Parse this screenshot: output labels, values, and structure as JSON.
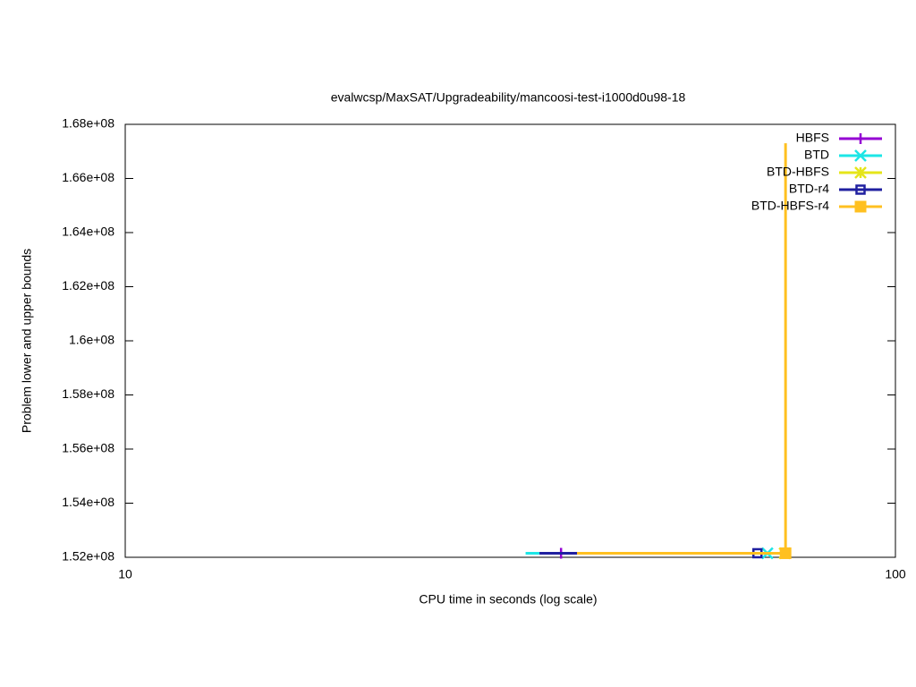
{
  "chart_data": {
    "type": "line",
    "step": true,
    "title": "evalwcsp/MaxSAT/Upgradeability/mancoosi-test-i1000d0u98-18",
    "x_label": "CPU time in seconds (log scale)",
    "y_label": "Problem lower and upper bounds",
    "x_log": true,
    "xlim": [
      10,
      100
    ],
    "xticks": [
      10,
      100
    ],
    "ylim": [
      152000000,
      168000000
    ],
    "yticks": [
      {
        "value": 152000000,
        "label": "1.52e+08"
      },
      {
        "value": 154000000,
        "label": "1.54e+08"
      },
      {
        "value": 156000000,
        "label": "1.56e+08"
      },
      {
        "value": 158000000,
        "label": "1.58e+08"
      },
      {
        "value": 160000000,
        "label": "1.6e+08"
      },
      {
        "value": 162000000,
        "label": "1.62e+08"
      },
      {
        "value": 164000000,
        "label": "1.64e+08"
      },
      {
        "value": 166000000,
        "label": "1.66e+08"
      },
      {
        "value": 168000000,
        "label": "1.68e+08"
      }
    ],
    "legend": "top-right",
    "series": [
      {
        "name": "HBFS",
        "color": "#9400d3",
        "marker": "plus",
        "x": [
          34.5,
          36.8
        ],
        "values": [
          152150000,
          152150000
        ]
      },
      {
        "name": "BTD",
        "color": "#1ce6e6",
        "marker": "cross",
        "x": [
          33.1,
          68.2
        ],
        "values": [
          152150000,
          152150000
        ]
      },
      {
        "name": "BTD-HBFS",
        "color": "#e5e51a",
        "marker": "star",
        "x": [
          38.5,
          71.8
        ],
        "values": [
          152150000,
          152150000
        ]
      },
      {
        "name": "BTD-r4",
        "color": "#2020a0",
        "marker": "square-open",
        "x": [
          34.5,
          66.2
        ],
        "values": [
          152150000,
          152150000
        ]
      },
      {
        "name": "BTD-HBFS-r4",
        "color": "#ffc020",
        "marker": "square-filled",
        "x": [
          38.6,
          72.0,
          72.0
        ],
        "values": [
          152150000,
          167300000,
          152150000
        ]
      }
    ]
  }
}
